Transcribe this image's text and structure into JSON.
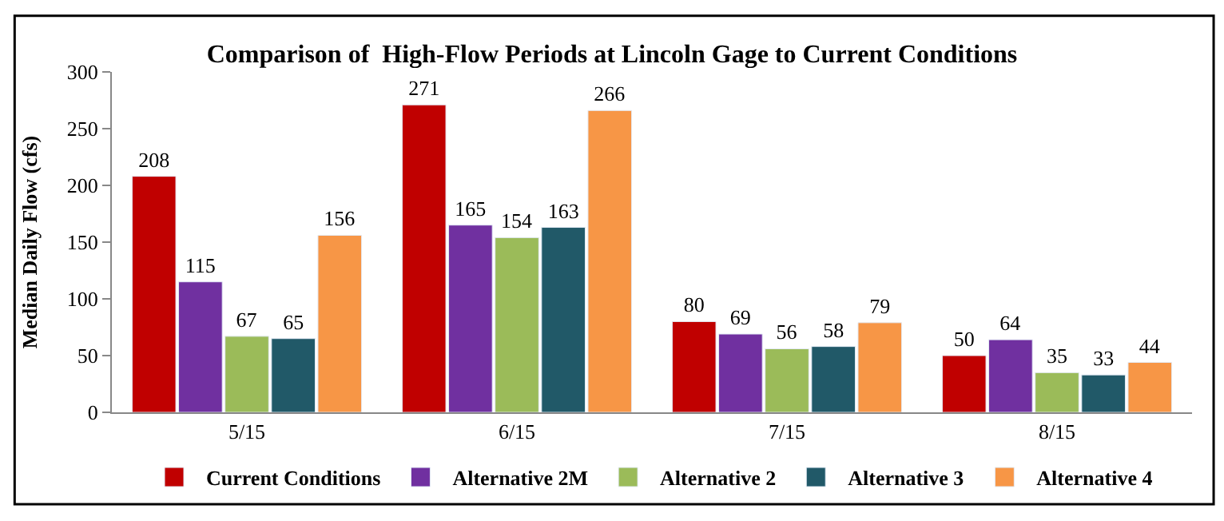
{
  "chart_data": {
    "type": "bar",
    "title": "Comparison of  High-Flow Periods at Lincoln Gage to Current Conditions",
    "ylabel": "Median Daily Flow (cfs)",
    "categories": [
      "5/15",
      "6/15",
      "7/15",
      "8/15"
    ],
    "series": [
      {
        "name": "Current Conditions",
        "color": "#c00000",
        "values": [
          208,
          271,
          80,
          50
        ]
      },
      {
        "name": "Alternative 2M",
        "color": "#7030a0",
        "values": [
          115,
          165,
          69,
          64
        ]
      },
      {
        "name": "Alternative 2",
        "color": "#9bbb59",
        "values": [
          67,
          154,
          56,
          35
        ]
      },
      {
        "name": "Alternative 3",
        "color": "#215968",
        "values": [
          65,
          163,
          58,
          33
        ]
      },
      {
        "name": "Alternative 4",
        "color": "#f79646",
        "values": [
          156,
          266,
          79,
          44
        ]
      }
    ],
    "ylim": [
      0,
      300
    ],
    "yticks": [
      0,
      50,
      100,
      150,
      200,
      250,
      300
    ],
    "grid": false,
    "legend": "bottom",
    "data_labels": true
  }
}
